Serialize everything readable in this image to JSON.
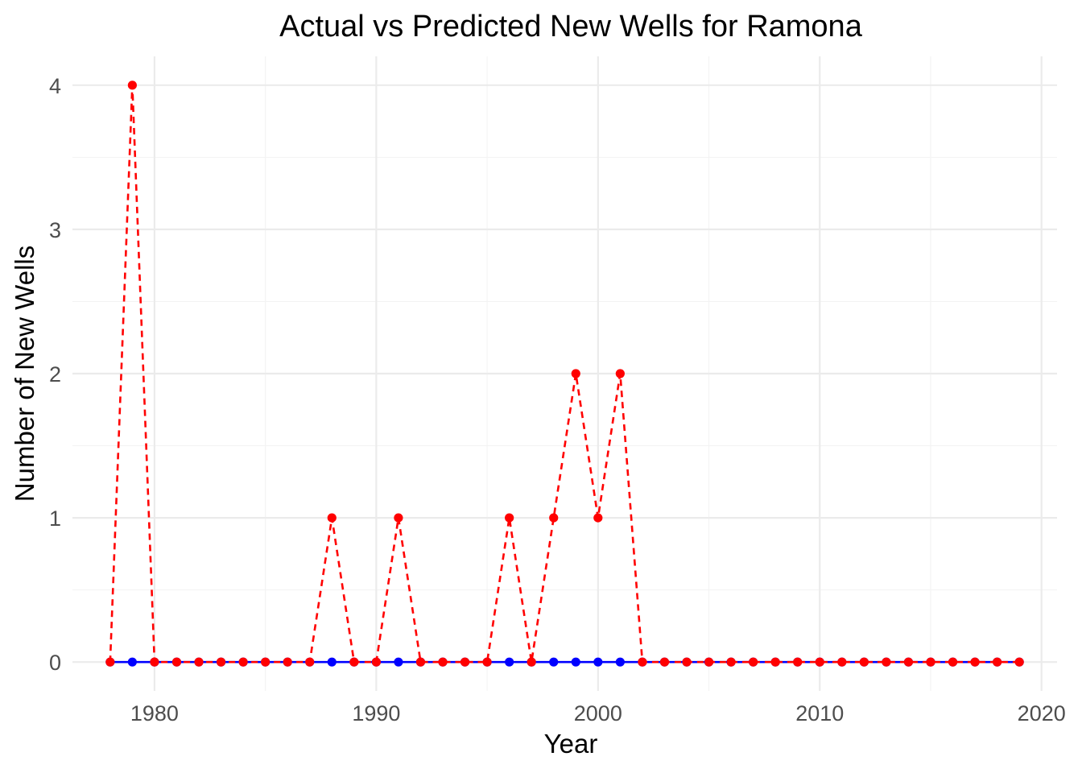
{
  "chart_data": {
    "type": "line",
    "title": "Actual vs Predicted New Wells for Ramona",
    "xlabel": "Year",
    "ylabel": "Number of New Wells",
    "xlim": [
      1976.3,
      2020.7
    ],
    "ylim": [
      -0.2,
      4.2
    ],
    "x_ticks": [
      1980,
      1990,
      2000,
      2010,
      2020
    ],
    "y_ticks": [
      0,
      1,
      2,
      3,
      4
    ],
    "grid": true,
    "legend": "none",
    "x": [
      1978,
      1979,
      1980,
      1981,
      1982,
      1983,
      1984,
      1985,
      1986,
      1987,
      1988,
      1989,
      1990,
      1991,
      1992,
      1993,
      1994,
      1995,
      1996,
      1997,
      1998,
      1999,
      2000,
      2001,
      2002,
      2003,
      2004,
      2005,
      2006,
      2007,
      2008,
      2009,
      2010,
      2011,
      2012,
      2013,
      2014,
      2015,
      2016,
      2017,
      2018,
      2019
    ],
    "series": [
      {
        "color": "#0000ff",
        "line_style": "solid",
        "values": [
          0,
          0,
          0,
          0,
          0,
          0,
          0,
          0,
          0,
          0,
          0,
          0,
          0,
          0,
          0,
          0,
          0,
          0,
          0,
          0,
          0,
          0,
          0,
          0,
          0,
          0,
          0,
          0,
          0,
          0,
          0,
          0,
          0,
          0,
          0,
          0,
          0,
          0,
          0,
          0,
          0,
          0
        ]
      },
      {
        "color": "#ff0000",
        "line_style": "dashed",
        "values": [
          0,
          4,
          0,
          0,
          0,
          0,
          0,
          0,
          0,
          0,
          1,
          0,
          0,
          1,
          0,
          0,
          0,
          0,
          1,
          0,
          1,
          2,
          1,
          2,
          0,
          0,
          0,
          0,
          0,
          0,
          0,
          0,
          0,
          0,
          0,
          0,
          0,
          0,
          0,
          0,
          0,
          0
        ]
      }
    ]
  }
}
